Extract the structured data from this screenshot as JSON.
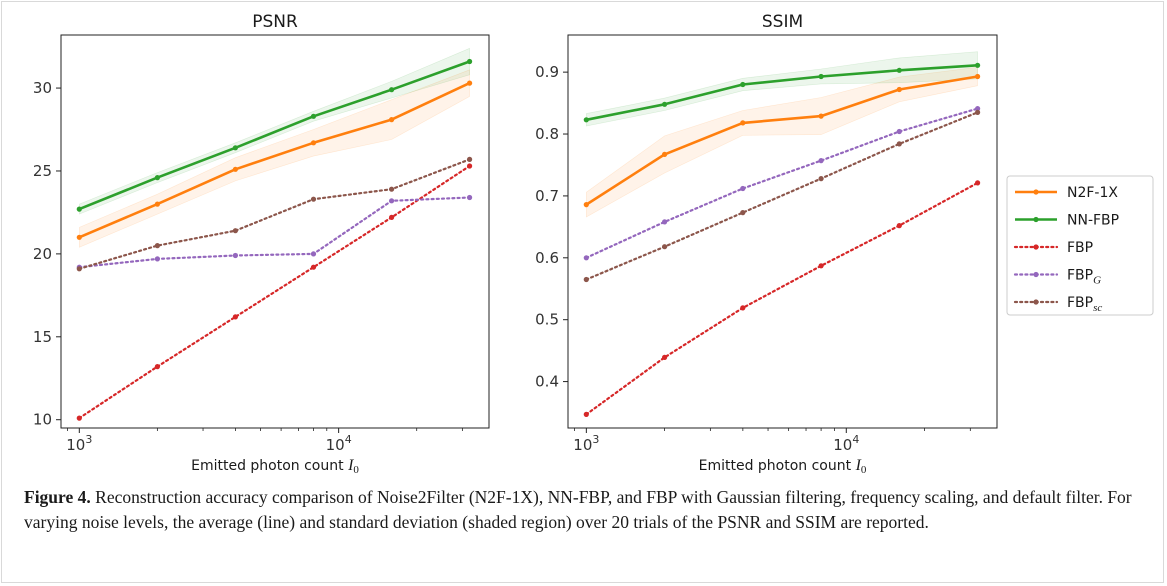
{
  "figure": {
    "caption_label": "Figure 4.",
    "caption_text": " Reconstruction accuracy comparison of Noise2Filter (N2F-1X), NN-FBP, and FBP with Gaussian filtering, frequency scaling, and default filter. For varying noise levels, the average (line) and standard deviation (shaded region) over 20 trials of the PSNR and SSIM are reported."
  },
  "legend": {
    "placement": "right, between panels",
    "entries": [
      {
        "label": "N2F-1X",
        "sub": "",
        "series": "N2F-1X"
      },
      {
        "label": "NN-FBP",
        "sub": "",
        "series": "NN-FBP"
      },
      {
        "label": "FBP",
        "sub": "",
        "series": "FBP"
      },
      {
        "label": "FBP",
        "sub": "G",
        "series": "FBP_G"
      },
      {
        "label": "FBP",
        "sub": "sc",
        "series": "FBP_sc"
      }
    ]
  },
  "colors": {
    "N2F-1X": "#ff7f0e",
    "NN-FBP": "#2ca02c",
    "FBP": "#d62728",
    "FBP_G": "#9467bd",
    "FBP_sc": "#8c564b"
  },
  "chart_data": [
    {
      "type": "line",
      "title": "PSNR",
      "xlabel": "Emitted photon count",
      "xlabel_var": "I",
      "xlabel_sub": "0",
      "ylabel": "",
      "xscale": "log",
      "x": [
        1000,
        2000,
        4000,
        8000,
        16000,
        32000
      ],
      "xlim": [
        850,
        38000
      ],
      "ylim": [
        9.5,
        33.2
      ],
      "yticks": [
        10,
        15,
        20,
        25,
        30
      ],
      "xticks": [
        {
          "value": 1000,
          "base": "10",
          "exp": "3"
        },
        {
          "value": 10000,
          "base": "10",
          "exp": "4"
        }
      ],
      "grid": false,
      "series": [
        {
          "name": "N2F-1X",
          "style": "solid",
          "values": [
            21.0,
            23.0,
            25.1,
            26.7,
            28.1,
            30.3
          ],
          "std": [
            0.6,
            0.6,
            0.7,
            0.8,
            1.2,
            0.8
          ]
        },
        {
          "name": "NN-FBP",
          "style": "solid",
          "values": [
            22.7,
            24.6,
            26.4,
            28.3,
            29.9,
            31.6
          ],
          "std": [
            0.3,
            0.3,
            0.3,
            0.3,
            0.5,
            0.8
          ]
        },
        {
          "name": "FBP",
          "style": "dotted",
          "values": [
            10.1,
            13.2,
            16.2,
            19.2,
            22.2,
            25.3
          ],
          "std": []
        },
        {
          "name": "FBP_G",
          "style": "dotted",
          "values": [
            19.2,
            19.7,
            19.9,
            20.0,
            23.2,
            23.4
          ],
          "std": []
        },
        {
          "name": "FBP_sc",
          "style": "dotted",
          "values": [
            19.1,
            20.5,
            21.4,
            23.3,
            23.9,
            25.7
          ],
          "std": []
        }
      ]
    },
    {
      "type": "line",
      "title": "SSIM",
      "xlabel": "Emitted photon count",
      "xlabel_var": "I",
      "xlabel_sub": "0",
      "ylabel": "",
      "xscale": "log",
      "x": [
        1000,
        2000,
        4000,
        8000,
        16000,
        32000
      ],
      "xlim": [
        850,
        38000
      ],
      "ylim": [
        0.325,
        0.96
      ],
      "yticks": [
        0.4,
        0.5,
        0.6,
        0.7,
        0.8,
        0.9
      ],
      "xticks": [
        {
          "value": 1000,
          "base": "10",
          "exp": "3"
        },
        {
          "value": 10000,
          "base": "10",
          "exp": "4"
        }
      ],
      "grid": false,
      "series": [
        {
          "name": "N2F-1X",
          "style": "solid",
          "values": [
            0.686,
            0.767,
            0.818,
            0.829,
            0.872,
            0.893
          ],
          "std": [
            0.02,
            0.03,
            0.02,
            0.03,
            0.02,
            0.015
          ]
        },
        {
          "name": "NN-FBP",
          "style": "solid",
          "values": [
            0.823,
            0.848,
            0.88,
            0.893,
            0.903,
            0.911
          ],
          "std": [
            0.01,
            0.01,
            0.01,
            0.012,
            0.02,
            0.022
          ]
        },
        {
          "name": "FBP",
          "style": "dotted",
          "values": [
            0.347,
            0.439,
            0.519,
            0.587,
            0.652,
            0.721
          ],
          "std": []
        },
        {
          "name": "FBP_G",
          "style": "dotted",
          "values": [
            0.6,
            0.658,
            0.712,
            0.757,
            0.804,
            0.841
          ],
          "std": []
        },
        {
          "name": "FBP_sc",
          "style": "dotted",
          "values": [
            0.565,
            0.618,
            0.673,
            0.728,
            0.784,
            0.835
          ],
          "std": []
        }
      ]
    }
  ]
}
